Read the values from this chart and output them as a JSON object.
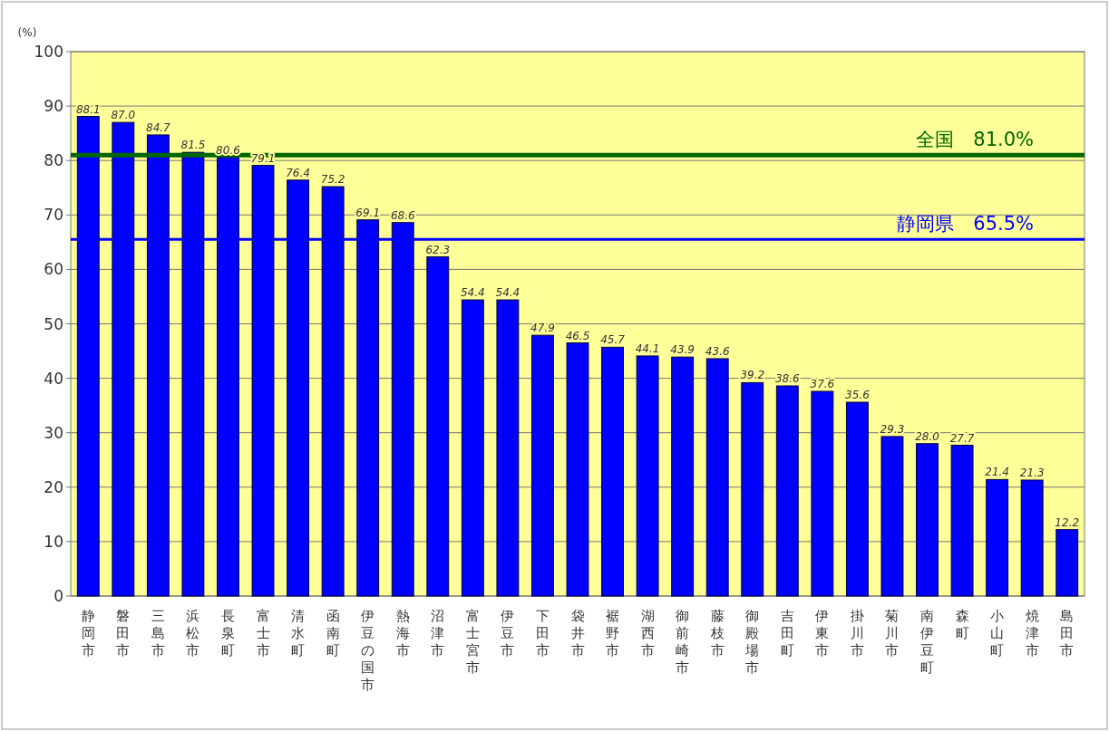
{
  "chart_data": {
    "type": "bar",
    "ylabel": "(%)",
    "categories": [
      "静岡市",
      "磐田市",
      "三島市",
      "浜松市",
      "長泉町",
      "富士市",
      "清水町",
      "函南町",
      "伊豆の国市",
      "熱海市",
      "沼津市",
      "富士宮市",
      "伊豆市",
      "下田市",
      "袋井市",
      "裾野市",
      "湖西市",
      "御前崎市",
      "藤枝市",
      "御殿場市",
      "吉田町",
      "伊東市",
      "掛川市",
      "菊川市",
      "南伊豆町",
      "森町",
      "小山町",
      "焼津市",
      "島田市"
    ],
    "values": [
      88.1,
      87.0,
      84.7,
      81.5,
      80.6,
      79.1,
      76.4,
      75.2,
      69.1,
      68.6,
      62.3,
      54.4,
      54.4,
      47.9,
      46.5,
      45.7,
      44.1,
      43.9,
      43.6,
      39.2,
      38.6,
      37.6,
      35.6,
      29.3,
      28.0,
      27.7,
      21.4,
      21.3,
      12.2
    ],
    "value_labels": [
      "88.1",
      "87.0",
      "84.7",
      "81.5",
      "80.6",
      "79.1",
      "76.4",
      "75.2",
      "69.1",
      "68.6",
      "62.3",
      "54.4",
      "54.4",
      "47.9",
      "46.5",
      "45.7",
      "44.1",
      "43.9",
      "43.6",
      "39.2",
      "38.6",
      "37.6",
      "35.6",
      "29.3",
      "28.0",
      "27.7",
      "21.4",
      "21.3",
      "12.2"
    ],
    "color": "#0000ff",
    "ylim": [
      0,
      100
    ],
    "yticks": [
      0,
      10,
      20,
      30,
      40,
      50,
      60,
      70,
      80,
      90,
      100
    ],
    "grid": "y",
    "ref_lines": [
      {
        "axis": "y",
        "value": 81.0,
        "label": "全国　81.0%",
        "color": "#006600"
      },
      {
        "axis": "y",
        "value": 65.5,
        "label": "静岡県　65.5%",
        "color": "#0000ff"
      }
    ]
  }
}
